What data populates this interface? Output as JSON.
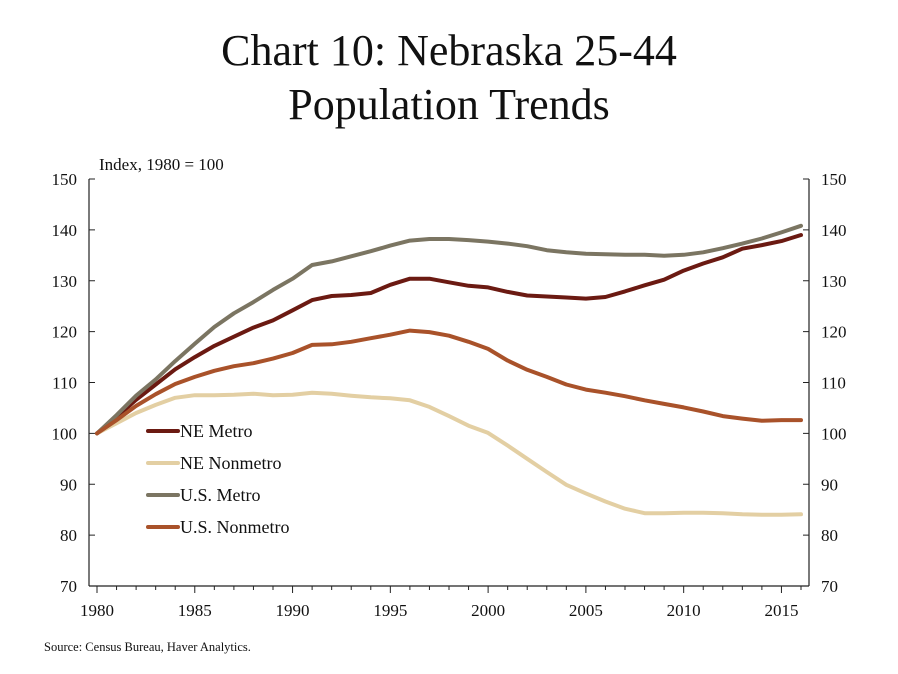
{
  "title": {
    "line1": "Chart 10: Nebraska 25-44",
    "line2": "Population Trends"
  },
  "source": "Source: Census Bureau, Haver Analytics.",
  "chart_data": {
    "type": "line",
    "title": "Chart 10: Nebraska 25-44 Population Trends",
    "unit_label": "Index, 1980 = 100",
    "ylim": [
      70,
      150
    ],
    "y_ticks": [
      70,
      80,
      90,
      100,
      110,
      120,
      130,
      140,
      150
    ],
    "y_axis_sides": [
      "left",
      "right"
    ],
    "xlim": [
      1980,
      2016
    ],
    "x_ticks": [
      1980,
      1985,
      1990,
      1995,
      2000,
      2005,
      2010,
      2015
    ],
    "grid": false,
    "legend_position": "lower-left",
    "x": [
      1980,
      1981,
      1982,
      1983,
      1984,
      1985,
      1986,
      1987,
      1988,
      1989,
      1990,
      1991,
      1992,
      1993,
      1994,
      1995,
      1996,
      1997,
      1998,
      1999,
      2000,
      2001,
      2002,
      2003,
      2004,
      2005,
      2006,
      2007,
      2008,
      2009,
      2010,
      2011,
      2012,
      2013,
      2014,
      2015,
      2016
    ],
    "series": [
      {
        "name": "NE Metro",
        "color": "#6b1a12",
        "values": [
          100,
          103.2,
          106.6,
          109.6,
          112.6,
          115.0,
          117.2,
          119.0,
          120.8,
          122.2,
          124.2,
          126.2,
          127.0,
          127.2,
          127.6,
          129.2,
          130.4,
          130.4,
          129.7,
          129.0,
          128.7,
          127.8,
          127.1,
          126.9,
          126.7,
          126.5,
          126.8,
          127.9,
          129.1,
          130.2,
          132.0,
          133.4,
          134.6,
          136.3,
          137.0,
          137.8,
          139.0
        ]
      },
      {
        "name": "NE Nonmetro",
        "color": "#e3cfa3",
        "values": [
          100,
          102.0,
          104.0,
          105.6,
          107.0,
          107.5,
          107.5,
          107.6,
          107.8,
          107.5,
          107.6,
          108.0,
          107.8,
          107.4,
          107.1,
          106.9,
          106.5,
          105.2,
          103.4,
          101.5,
          100.1,
          97.6,
          95.0,
          92.4,
          89.9,
          88.2,
          86.6,
          85.2,
          84.3,
          84.3,
          84.4,
          84.4,
          84.3,
          84.1,
          84.0,
          84.0,
          84.1
        ]
      },
      {
        "name": "U.S. Metro",
        "color": "#7b7562",
        "values": [
          100,
          103.6,
          107.4,
          110.6,
          114.2,
          117.6,
          120.9,
          123.6,
          125.8,
          128.2,
          130.4,
          133.1,
          133.8,
          134.8,
          135.8,
          136.9,
          137.9,
          138.2,
          138.2,
          138.0,
          137.7,
          137.3,
          136.8,
          136.0,
          135.6,
          135.3,
          135.2,
          135.1,
          135.1,
          134.9,
          135.1,
          135.6,
          136.4,
          137.3,
          138.3,
          139.5,
          140.8
        ]
      },
      {
        "name": "U.S. Nonmetro",
        "color": "#a9522a",
        "values": [
          100,
          102.6,
          105.4,
          107.7,
          109.7,
          111.1,
          112.3,
          113.2,
          113.8,
          114.7,
          115.8,
          117.4,
          117.5,
          118.0,
          118.7,
          119.4,
          120.2,
          119.9,
          119.2,
          118.0,
          116.6,
          114.3,
          112.5,
          111.1,
          109.6,
          108.6,
          108.0,
          107.3,
          106.5,
          105.8,
          105.1,
          104.3,
          103.4,
          102.9,
          102.5,
          102.6,
          102.6
        ]
      }
    ]
  }
}
